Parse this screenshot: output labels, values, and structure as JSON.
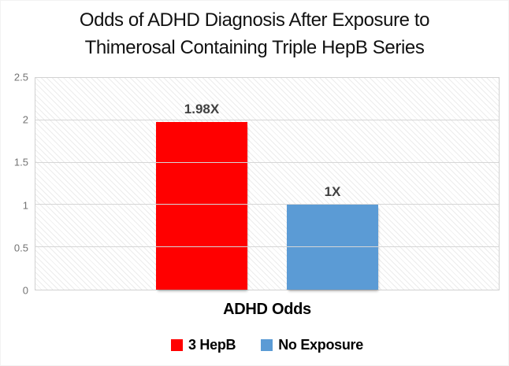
{
  "title": {
    "line1": "Odds of ADHD Diagnosis After Exposure to",
    "line2": "Thimerosal Containing Triple HepB Series"
  },
  "chart_data": {
    "type": "bar",
    "title": "Odds of ADHD Diagnosis After Exposure to Thimerosal Containing Triple HepB Series",
    "categories": [
      "ADHD Odds"
    ],
    "series": [
      {
        "name": "3 HepB",
        "values": [
          1.98
        ],
        "data_label": "1.98X",
        "color": "#ff0000"
      },
      {
        "name": "No Exposure",
        "values": [
          1
        ],
        "data_label": "1X",
        "color": "#5b9bd5"
      }
    ],
    "xlabel": "ADHD Odds",
    "ylabel": "",
    "ylim": [
      0,
      2.5
    ],
    "yticks": [
      0,
      0.5,
      1,
      1.5,
      2,
      2.5
    ],
    "grid": "horizontal",
    "legend_position": "bottom",
    "plot_background": "light diagonal hatch pattern"
  },
  "colors": {
    "series_red": "#ff0000",
    "series_blue": "#5b9bd5",
    "gridline": "#d6d6d6",
    "tick_text": "#737373",
    "data_label_text": "#404040",
    "title_text": "#111111"
  }
}
